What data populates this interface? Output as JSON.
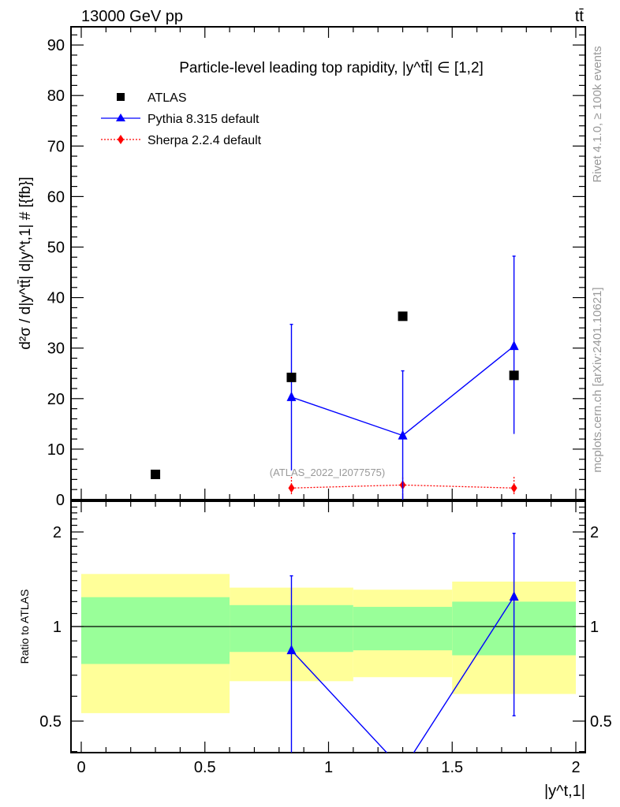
{
  "header": {
    "left": "13000 GeV pp",
    "right": "tt̄"
  },
  "side": {
    "rivet": "Rivet 4.1.0, ≥ 100k events",
    "mcplots": "mcplots.cern.ch [arXiv:2401.10621]"
  },
  "watermark": "(ATLAS_2022_I2077575)",
  "chart_data": [
    {
      "type": "scatter",
      "title": "Particle-level leading top rapidity, |y^tt̄| ∈ [1,2]",
      "xlabel": "|y^t,1|",
      "ylabel": "d²σ / d|y^tt̄| d|y^t,1| # [{fb}]",
      "xlim": [
        0,
        2
      ],
      "ylim": [
        0,
        93
      ],
      "yticks": [
        0,
        10,
        20,
        30,
        40,
        50,
        60,
        70,
        80,
        90
      ],
      "xticks": [
        0,
        0.5,
        1,
        1.5,
        2
      ],
      "legend_position": "top-left",
      "series": [
        {
          "name": "ATLAS",
          "color": "#000000",
          "marker": "square",
          "x": [
            0.3,
            0.85,
            1.3,
            1.75
          ],
          "y": [
            5.0,
            24.2,
            36.3,
            24.6
          ]
        },
        {
          "name": "Pythia 8.315 default",
          "color": "#0000ff",
          "marker": "triangle",
          "line": "solid",
          "x": [
            0.85,
            1.3,
            1.75
          ],
          "y": [
            20.3,
            12.7,
            30.4
          ],
          "yerr_low": [
            5.8,
            0,
            13.0
          ],
          "yerr_high": [
            34.7,
            25.5,
            48.2
          ]
        },
        {
          "name": "Sherpa 2.2.4 default",
          "color": "#ff0000",
          "marker": "diamond",
          "line": "dotted",
          "x": [
            0.85,
            1.3,
            1.75
          ],
          "y": [
            2.3,
            2.9,
            2.3
          ],
          "yerr_low": [
            1.0,
            0,
            1.0
          ],
          "yerr_high": [
            4.5,
            4.4,
            4.5
          ]
        }
      ]
    },
    {
      "type": "line",
      "ylabel": "Ratio to ATLAS",
      "xlabel": "|y^t,1|",
      "yscale": "log",
      "ylim": [
        0.4,
        2.45
      ],
      "yticks": [
        0.5,
        1,
        2
      ],
      "xticks": [
        0,
        0.5,
        1,
        1.5,
        2
      ],
      "bands": {
        "bin_edges": [
          0,
          0.6,
          1.1,
          1.5,
          2.0
        ],
        "yellow_low": [
          0.53,
          0.67,
          0.69,
          0.61
        ],
        "yellow_high": [
          1.47,
          1.33,
          1.31,
          1.39
        ],
        "green_low": [
          0.76,
          0.83,
          0.84,
          0.81
        ],
        "green_high": [
          1.24,
          1.17,
          1.155,
          1.2
        ]
      },
      "series": [
        {
          "name": "Pythia 8.315 default",
          "color": "#0000ff",
          "x": [
            0.85,
            1.3,
            1.75
          ],
          "y": [
            0.84,
            0.35,
            1.245
          ],
          "yerr_low": [
            0.2,
            0.0,
            0.52
          ],
          "yerr_high": [
            1.45,
            0.7,
            1.98
          ]
        }
      ]
    }
  ]
}
